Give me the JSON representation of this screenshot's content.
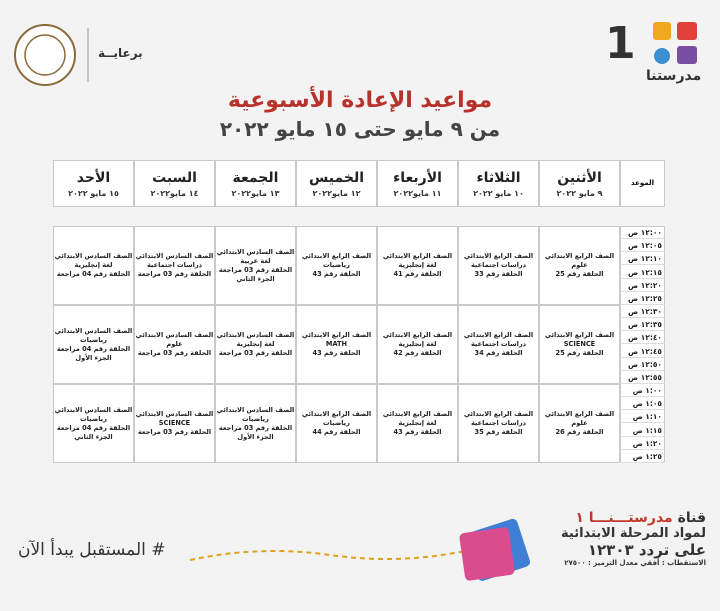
{
  "header": {
    "logo_number": "1",
    "logo_text": "مدرستنا",
    "sponsor": "برعايــة",
    "title": "مواعيد الإعادة الأسبوعية",
    "subtitle": "من ٩ مايو حتى ١٥ مايو ٢٠٢٢"
  },
  "table": {
    "columns": [
      {
        "day": "الموعد"
      },
      {
        "day": "الأثنين",
        "date": "٩ مايو ٢٠٢٢"
      },
      {
        "day": "الثلاثاء",
        "date": "١٠ مايو ٢٠٢٢"
      },
      {
        "day": "الأربعاء",
        "date": "١١ مايو٢٠٢٢"
      },
      {
        "day": "الخميس",
        "date": "١٢ مايو٢٠٢٢"
      },
      {
        "day": "الجمعة",
        "date": "١٣ مايو٢٠٢٢"
      },
      {
        "day": "السبت",
        "date": "١٤ مايو٢٠٢٢"
      },
      {
        "day": "الأحد",
        "date": "١٥ مايو ٢٠٢٢"
      }
    ],
    "times": [
      "١٢:٠٠ ص",
      "١٢:٠٥ ص",
      "١٢:١٠ ص",
      "١٢:١٥ ص",
      "١٢:٢٠ ص",
      "١٢:٢٥ ص",
      "١٢:٣٠ ص",
      "١٢:٣٥ ص",
      "١٢:٤٠ ص",
      "١٢:٤٥ ص",
      "١٢:٥٠ ص",
      "١٢:٥٥ ص",
      "١:٠٠ ص",
      "١:٠٥ ص",
      "١:١٠ ص",
      "١:١٥ ص",
      "١:٢٠ ص",
      "١:٢٥ ص"
    ],
    "rows": [
      [
        [
          "الصف الرابع الابتدائي",
          "علوم",
          "الحلقة رقم 25"
        ],
        [
          "الصف الرابع الابتدائي",
          "دراسات اجتماعية",
          "الحلقة رقم 33"
        ],
        [
          "الصف الرابع الابتدائي",
          "لغة إنجليزية",
          "الحلقة رقم 41"
        ],
        [
          "الصف الرابع الابتدائي",
          "رياضيات",
          "الحلقة رقم 43"
        ],
        [
          "الصف السادس الابتدائي",
          "لغة عربية",
          "الحلقة رقم 03 مراجعة",
          "الجزء الثاني"
        ],
        [
          "الصف السادس الابتدائي",
          "دراسات اجتماعية",
          "الحلقة رقم 03 مراجعة"
        ],
        [
          "الصف السادس الابتدائي",
          "لغة إنجليزية",
          "الحلقة رقم 04 مراجعة"
        ]
      ],
      [
        [
          "الصف الرابع الابتدائي",
          "SCIENCE",
          "الحلقة رقم 25"
        ],
        [
          "الصف الرابع الابتدائي",
          "دراسات اجتماعية",
          "الحلقة رقم 34"
        ],
        [
          "الصف الرابع الابتدائي",
          "لغة إنجليزية",
          "الحلقة رقم 42"
        ],
        [
          "الصف الرابع الابتدائي",
          "MATH",
          "الحلقة رقم 43"
        ],
        [
          "الصف السادس الابتدائي",
          "لغة إنجليزية",
          "الحلقة رقم 03 مراجعة"
        ],
        [
          "الصف السادس الابتدائي",
          "علوم",
          "الحلقة رقم 03 مراجعة"
        ],
        [
          "الصف السادس الابتدائي",
          "رياضيات",
          "الحلقة رقم 04 مراجعة",
          "الجزء الأول"
        ]
      ],
      [
        [
          "الصف الرابع الابتدائي",
          "علوم",
          "الحلقة رقم 26"
        ],
        [
          "الصف الرابع الابتدائي",
          "دراسات اجتماعية",
          "الحلقة رقم 35"
        ],
        [
          "الصف الرابع الابتدائي",
          "لغة إنجليزية",
          "الحلقة رقم 43"
        ],
        [
          "الصف الرابع الابتدائي",
          "رياضيات",
          "الحلقة رقم 44"
        ],
        [
          "الصف السادس الابتدائي",
          "رياضيات",
          "الحلقة رقم 03 مراجعة",
          "الجزء الأول"
        ],
        [
          "الصف السادس الابتدائي",
          "SCIENCE",
          "الحلقة رقم 03 مراجعة"
        ],
        [
          "الصف السادس الابتدائي",
          "رياضيات",
          "الحلقة رقم 04 مراجعة",
          "الجزء الثاني"
        ]
      ]
    ]
  },
  "footer": {
    "hashtag": "# المستقبل يبدأ الآن",
    "channel_label": "قناة",
    "channel_name": "مدرستـــنـــا ١",
    "line2": "لمواد المرحلة الابتدائية",
    "line3": "على تردد ١٢٣٠٣",
    "line4": "الاستقطاب : أفقي معدل الترميز : ٢٧٥٠٠"
  }
}
